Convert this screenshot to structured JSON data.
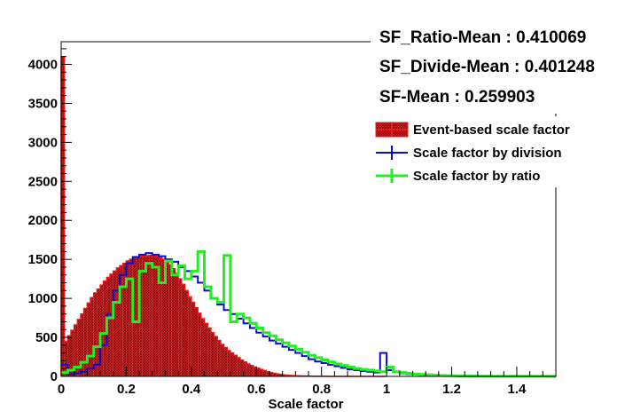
{
  "chart_data": {
    "type": "histogram",
    "xlabel": "Scale factor",
    "ylabel": "",
    "xlim": [
      0,
      1.52
    ],
    "ylim": [
      0,
      4290
    ],
    "x_ticks": [
      0,
      0.2,
      0.4,
      0.6,
      0.8,
      1,
      1.2,
      1.4
    ],
    "x_tick_labels": [
      "0",
      "0.2",
      "0.4",
      "0.6",
      "0.8",
      "1",
      "1.2",
      "1.4"
    ],
    "y_ticks": [
      0,
      500,
      1000,
      1500,
      2000,
      2500,
      3000,
      3500,
      4000
    ],
    "y_tick_labels": [
      "0",
      "500",
      "1000",
      "1500",
      "2000",
      "2500",
      "3000",
      "3500",
      "4000"
    ],
    "grid": false,
    "stats": [
      "SF_Ratio-Mean : 0.410069",
      "SF_Divide-Mean : 0.401248",
      "SF-Mean : 0.259903"
    ],
    "legend_position": "top-right",
    "series": [
      {
        "name": "Event-based scale factor",
        "style": "filled-histogram",
        "color": "#e8191c",
        "fill": "#9b1b1b",
        "x": [
          0.005,
          0.015,
          0.025,
          0.035,
          0.045,
          0.055,
          0.065,
          0.075,
          0.085,
          0.095,
          0.105,
          0.115,
          0.125,
          0.135,
          0.145,
          0.155,
          0.165,
          0.175,
          0.185,
          0.195,
          0.205,
          0.215,
          0.225,
          0.235,
          0.245,
          0.255,
          0.265,
          0.275,
          0.285,
          0.295,
          0.305,
          0.315,
          0.325,
          0.335,
          0.345,
          0.355,
          0.365,
          0.375,
          0.385,
          0.395,
          0.405,
          0.415,
          0.425,
          0.435,
          0.445,
          0.455,
          0.465,
          0.475,
          0.485,
          0.495,
          0.505,
          0.515,
          0.525,
          0.535,
          0.545,
          0.555,
          0.565,
          0.575,
          0.585,
          0.595,
          0.605,
          0.615,
          0.625,
          0.635,
          0.645,
          0.655,
          0.665,
          0.675,
          0.685,
          0.695,
          0.705,
          0.715,
          0.725,
          0.735,
          0.745,
          0.755,
          0.765,
          0.775,
          0.785,
          0.795,
          0.805,
          0.815,
          0.825,
          0.835,
          0.845,
          0.855,
          0.865,
          0.875,
          0.885,
          0.895,
          0.905,
          0.915,
          0.925,
          0.935,
          0.945,
          0.955,
          0.965,
          0.975,
          0.985,
          0.995
        ],
        "values": [
          4100,
          450,
          520,
          590,
          660,
          730,
          800,
          870,
          940,
          1010,
          1070,
          1120,
          1170,
          1220,
          1270,
          1310,
          1350,
          1390,
          1420,
          1450,
          1480,
          1500,
          1520,
          1530,
          1540,
          1545,
          1548,
          1550,
          1548,
          1540,
          1520,
          1500,
          1470,
          1430,
          1380,
          1320,
          1250,
          1180,
          1100,
          1020,
          950,
          880,
          810,
          740,
          680,
          620,
          560,
          510,
          460,
          410,
          370,
          330,
          300,
          270,
          240,
          210,
          185,
          160,
          140,
          120,
          105,
          90,
          75,
          60,
          50,
          40,
          32,
          25,
          20,
          15,
          12,
          10,
          8,
          6,
          5,
          4,
          3,
          2,
          2,
          1,
          1,
          1,
          0,
          0,
          0,
          0,
          0,
          0,
          0,
          0,
          0,
          0,
          0,
          0,
          0,
          0,
          0,
          0,
          0,
          0
        ]
      },
      {
        "name": "Scale factor by division",
        "style": "step",
        "color": "#0a0acc",
        "x": [
          0.0,
          0.02,
          0.04,
          0.06,
          0.08,
          0.1,
          0.12,
          0.14,
          0.16,
          0.18,
          0.2,
          0.22,
          0.24,
          0.26,
          0.28,
          0.3,
          0.32,
          0.34,
          0.36,
          0.38,
          0.4,
          0.42,
          0.44,
          0.46,
          0.48,
          0.5,
          0.52,
          0.54,
          0.56,
          0.58,
          0.6,
          0.62,
          0.64,
          0.66,
          0.68,
          0.7,
          0.72,
          0.74,
          0.76,
          0.78,
          0.8,
          0.82,
          0.84,
          0.86,
          0.88,
          0.9,
          0.92,
          0.94,
          0.96,
          0.98,
          1.0,
          1.02,
          1.04,
          1.06,
          1.08,
          1.1,
          1.12,
          1.14,
          1.16,
          1.18,
          1.2,
          1.22,
          1.24,
          1.26,
          1.28,
          1.3,
          1.32,
          1.34,
          1.36,
          1.38,
          1.4,
          1.42,
          1.44,
          1.46,
          1.48,
          1.5
        ],
        "values": [
          150,
          30,
          40,
          60,
          100,
          150,
          400,
          800,
          1100,
          1300,
          1450,
          1530,
          1560,
          1580,
          1560,
          1540,
          1500,
          1470,
          1400,
          1350,
          1280,
          1200,
          1100,
          1000,
          920,
          850,
          800,
          740,
          680,
          620,
          560,
          510,
          460,
          420,
          380,
          340,
          300,
          260,
          220,
          190,
          170,
          150,
          130,
          110,
          90,
          80,
          70,
          60,
          50,
          300,
          80,
          60,
          40,
          30,
          25,
          20,
          15,
          12,
          10,
          8,
          6,
          5,
          4,
          3,
          3,
          2,
          2,
          2,
          1,
          1,
          1,
          1,
          1,
          1,
          1,
          0
        ]
      },
      {
        "name": "Scale factor by ratio",
        "style": "step",
        "color": "#22ee22",
        "x": [
          0.0,
          0.02,
          0.04,
          0.06,
          0.08,
          0.1,
          0.12,
          0.14,
          0.16,
          0.18,
          0.2,
          0.22,
          0.24,
          0.26,
          0.28,
          0.3,
          0.32,
          0.34,
          0.36,
          0.38,
          0.4,
          0.42,
          0.44,
          0.46,
          0.48,
          0.5,
          0.52,
          0.54,
          0.56,
          0.58,
          0.6,
          0.62,
          0.64,
          0.66,
          0.68,
          0.7,
          0.72,
          0.74,
          0.76,
          0.78,
          0.8,
          0.82,
          0.84,
          0.86,
          0.88,
          0.9,
          0.92,
          0.94,
          0.96,
          0.98,
          1.0,
          1.02,
          1.04,
          1.06,
          1.08,
          1.1,
          1.12,
          1.14,
          1.16,
          1.18,
          1.2,
          1.22,
          1.24,
          1.26,
          1.28,
          1.3,
          1.32,
          1.34,
          1.36,
          1.38,
          1.4,
          1.42,
          1.44,
          1.46,
          1.48,
          1.5
        ],
        "values": [
          50,
          80,
          120,
          180,
          260,
          380,
          550,
          750,
          950,
          1150,
          1250,
          700,
          1350,
          1450,
          1400,
          1200,
          1480,
          1300,
          1420,
          1250,
          1350,
          1600,
          1150,
          1000,
          950,
          1550,
          700,
          800,
          750,
          680,
          620,
          560,
          520,
          470,
          430,
          390,
          350,
          310,
          270,
          240,
          210,
          185,
          160,
          140,
          120,
          100,
          90,
          80,
          70,
          60,
          120,
          60,
          50,
          40,
          30,
          25,
          20,
          15,
          12,
          10,
          8,
          6,
          5,
          4,
          3,
          3,
          2,
          2,
          2,
          1,
          1,
          1,
          1,
          1,
          1,
          0
        ]
      }
    ]
  }
}
